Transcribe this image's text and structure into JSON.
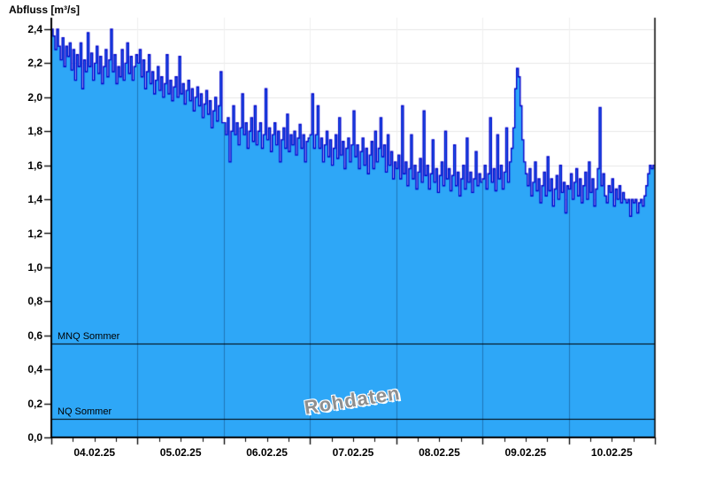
{
  "title": "Abfluss [m³/s]",
  "watermark": "Rohdaten",
  "colors": {
    "fill": "#2EA7F7",
    "line": "#0000CC",
    "grid": "#E8E8E8",
    "grid_vertical_faint": "#EFEFEF",
    "day_line": "#1E76B8",
    "axis": "#000000",
    "reference": "#000000",
    "background": "#FFFFFF"
  },
  "y_axis": {
    "min": 0.0,
    "max": 2.4,
    "step": 0.2,
    "tick_labels": [
      "0,0",
      "0,2",
      "0,4",
      "0,6",
      "0,8",
      "1,0",
      "1,2",
      "1,4",
      "1,6",
      "1,8",
      "2,0",
      "2,2",
      "2,4"
    ]
  },
  "x_axis": {
    "tick_labels": [
      "04.02.25",
      "05.02.25",
      "06.02.25",
      "07.02.25",
      "08.02.25",
      "09.02.25",
      "10.02.25"
    ],
    "minor_ticks_per_day": 3
  },
  "reference_lines": [
    {
      "label": "MNQ Sommer",
      "value": 0.55
    },
    {
      "label": "NQ Sommer",
      "value": 0.11
    }
  ],
  "chart_data": {
    "type": "area",
    "title": "Abfluss [m³/s]",
    "xlabel": "",
    "ylabel": "Abfluss [m³/s]",
    "unit": "m³/s",
    "ylim": [
      0,
      2.4
    ],
    "grid": true,
    "legend_position": "none",
    "annotations": [
      "Rohdaten",
      "MNQ Sommer = 0.55",
      "NQ Sommer = 0.11"
    ],
    "x_start": "04.02.25 00:00",
    "x_end": "11.02.25 00:00",
    "sample_interval_minutes": 30,
    "series": [
      {
        "name": "Abfluss Rohdaten",
        "values": [
          2.4,
          2.36,
          2.28,
          2.4,
          2.3,
          2.22,
          2.35,
          2.18,
          2.3,
          2.24,
          2.32,
          2.16,
          2.28,
          2.1,
          2.25,
          2.18,
          2.32,
          2.05,
          2.22,
          2.15,
          2.38,
          2.18,
          2.26,
          2.1,
          2.2,
          2.3,
          2.14,
          2.24,
          2.08,
          2.18,
          2.28,
          2.12,
          2.22,
          2.4,
          2.15,
          2.25,
          2.08,
          2.18,
          2.12,
          2.28,
          2.1,
          2.2,
          2.32,
          2.14,
          2.24,
          2.1,
          2.18,
          2.25,
          2.2,
          2.28,
          2.12,
          2.22,
          2.05,
          2.15,
          2.25,
          2.08,
          2.15,
          2.02,
          2.1,
          2.18,
          2.04,
          2.12,
          2.0,
          2.08,
          2.25,
          2.02,
          2.1,
          1.98,
          2.06,
          2.12,
          2.0,
          2.24,
          2.02,
          2.08,
          1.96,
          2.04,
          2.1,
          1.98,
          2.05,
          1.92,
          2.0,
          2.06,
          1.95,
          2.02,
          1.88,
          1.96,
          2.04,
          1.9,
          1.98,
          1.82,
          1.92,
          2.0,
          1.86,
          1.95,
          2.15,
          1.85,
          1.85,
          1.78,
          1.88,
          1.62,
          1.8,
          1.95,
          1.78,
          1.85,
          1.72,
          1.82,
          2.02,
          1.78,
          1.85,
          1.7,
          1.8,
          1.88,
          1.74,
          1.95,
          1.72,
          1.8,
          1.85,
          1.7,
          1.78,
          2.05,
          1.75,
          1.82,
          1.68,
          1.78,
          1.85,
          1.72,
          1.8,
          1.62,
          1.75,
          1.82,
          1.7,
          1.9,
          1.68,
          1.78,
          1.72,
          1.8,
          1.66,
          1.76,
          1.84,
          1.7,
          1.78,
          1.62,
          1.74,
          1.76,
          1.78,
          2.02,
          1.7,
          1.78,
          1.95,
          1.7,
          1.76,
          1.62,
          1.72,
          1.8,
          1.65,
          1.75,
          1.6,
          1.7,
          1.78,
          1.64,
          1.88,
          1.66,
          1.74,
          1.58,
          1.7,
          1.76,
          1.62,
          1.72,
          1.92,
          1.65,
          1.72,
          1.58,
          1.68,
          1.76,
          1.6,
          1.7,
          1.55,
          1.66,
          1.74,
          1.58,
          1.8,
          1.62,
          1.7,
          1.88,
          1.65,
          1.72,
          1.56,
          1.78,
          1.6,
          1.68,
          1.52,
          1.62,
          1.58,
          1.66,
          1.52,
          1.95,
          1.55,
          1.62,
          1.48,
          1.58,
          1.78,
          1.52,
          1.6,
          1.46,
          1.56,
          1.64,
          1.5,
          1.92,
          1.54,
          1.6,
          1.46,
          1.55,
          1.75,
          1.5,
          1.58,
          1.44,
          1.54,
          1.62,
          1.48,
          1.8,
          1.52,
          1.58,
          1.45,
          1.54,
          1.72,
          1.48,
          1.56,
          1.42,
          1.52,
          1.6,
          1.46,
          1.76,
          1.5,
          1.56,
          1.44,
          1.52,
          1.68,
          1.48,
          1.55,
          1.5,
          1.52,
          1.6,
          1.46,
          1.55,
          1.88,
          1.5,
          1.58,
          1.45,
          1.78,
          1.52,
          1.6,
          1.46,
          1.56,
          1.82,
          1.5,
          1.62,
          1.7,
          1.82,
          2.05,
          2.17,
          2.12,
          1.95,
          1.75,
          1.62,
          1.55,
          1.48,
          1.58,
          1.42,
          1.5,
          1.62,
          1.45,
          1.52,
          1.38,
          1.48,
          1.56,
          1.42,
          1.65,
          1.45,
          1.52,
          1.36,
          1.46,
          1.54,
          1.4,
          1.6,
          1.44,
          1.5,
          1.32,
          1.48,
          1.46,
          1.55,
          1.4,
          1.5,
          1.58,
          1.42,
          1.52,
          1.38,
          1.48,
          1.56,
          1.4,
          1.62,
          1.44,
          1.52,
          1.36,
          1.46,
          1.58,
          1.94,
          1.48,
          1.55,
          1.42,
          1.38,
          1.48,
          1.44,
          1.52,
          1.36,
          1.46,
          1.4,
          1.48,
          1.38,
          1.44,
          1.4,
          1.38,
          1.4,
          1.3,
          1.4,
          1.38,
          1.4,
          1.32,
          1.38,
          1.4,
          1.36,
          1.42,
          1.48,
          1.55,
          1.6,
          1.58,
          1.6
        ]
      }
    ]
  }
}
